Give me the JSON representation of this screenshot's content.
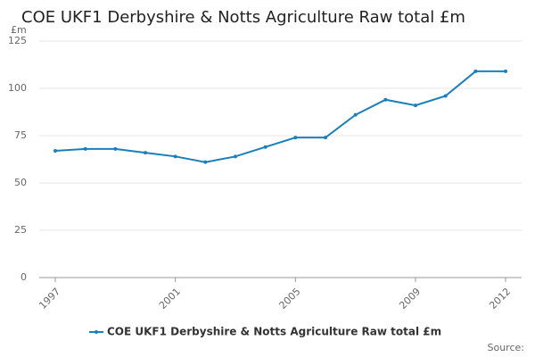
{
  "chart_data": {
    "type": "line",
    "title": "COE UKF1 Derbyshire & Notts Agriculture Raw total £m",
    "y_label": "£m",
    "source": "Source:",
    "x": [
      1997,
      1998,
      1999,
      2000,
      2001,
      2002,
      2003,
      2004,
      2005,
      2006,
      2007,
      2008,
      2009,
      2010,
      2011,
      2012
    ],
    "series": [
      {
        "name": "COE UKF1 Derbyshire & Notts Agriculture Raw total £m",
        "color": "#1a80bb",
        "values": [
          67,
          68,
          68,
          66,
          64,
          61,
          64,
          69,
          74,
          74,
          86,
          94,
          91,
          96,
          109,
          109
        ]
      }
    ],
    "xlim": [
      1997,
      2012
    ],
    "xticks": [
      1997,
      2001,
      2005,
      2009,
      2012
    ],
    "ylim": [
      0,
      125
    ],
    "yticks": [
      0,
      25,
      50,
      75,
      100,
      125
    ],
    "grid": true,
    "legend": "bottom"
  }
}
